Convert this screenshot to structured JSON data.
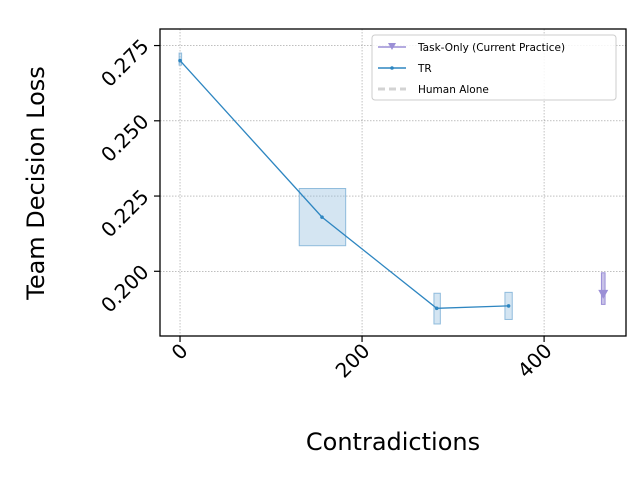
{
  "chart_data": {
    "type": "line",
    "xlabel": "Contradictions",
    "ylabel": "Team Decision Loss",
    "xlim": [
      -22,
      490
    ],
    "ylim": [
      0.1785,
      0.2805
    ],
    "xticks": [
      0,
      200,
      400
    ],
    "xtick_labels": [
      "0",
      "200",
      "400"
    ],
    "yticks": [
      0.2,
      0.225,
      0.25,
      0.275
    ],
    "ytick_labels": [
      "0.200",
      "0.225",
      "0.250",
      "0.275"
    ],
    "grid": true,
    "legend_position": "top-right",
    "series": [
      {
        "name": "Task-Only (Current Practice)",
        "color": "#9b8fd6",
        "marker": "triangle-down",
        "points": [
          {
            "x": 465,
            "y": 0.1925,
            "ylow": 0.189,
            "yhigh": 0.1995,
            "xlow": 463,
            "xhigh": 467
          }
        ]
      },
      {
        "name": "TR",
        "color": "#2e86c1",
        "marker": "dot",
        "points": [
          {
            "x": 0,
            "y": 0.27,
            "ylow": 0.2685,
            "yhigh": 0.2725,
            "xlow": -1,
            "xhigh": 1
          },
          {
            "x": 156,
            "y": 0.218,
            "ylow": 0.2085,
            "yhigh": 0.2275,
            "xlow": 131,
            "xhigh": 182
          },
          {
            "x": 282,
            "y": 0.1877,
            "ylow": 0.1825,
            "yhigh": 0.1927,
            "xlow": 279,
            "xhigh": 286
          },
          {
            "x": 361,
            "y": 0.1885,
            "ylow": 0.184,
            "yhigh": 0.193,
            "xlow": 357,
            "xhigh": 365
          }
        ]
      },
      {
        "name": "Human Alone",
        "color": "#d3d3d3",
        "linestyle": "dashed",
        "points": []
      }
    ]
  }
}
